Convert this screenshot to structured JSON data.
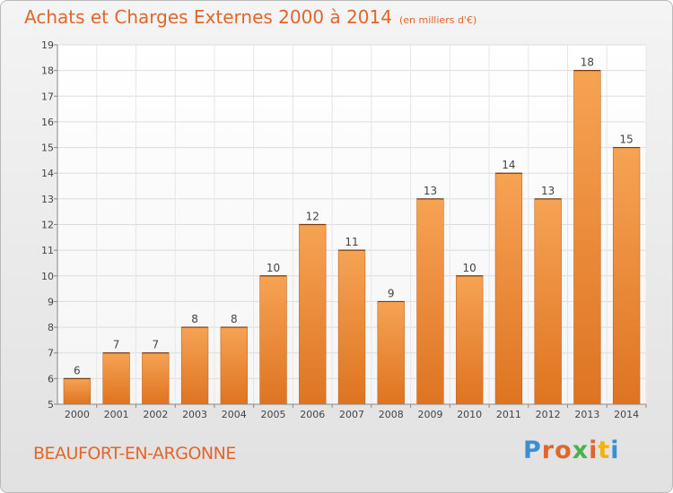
{
  "header": {
    "title": "Achats et Charges Externes 2000 à 2014",
    "unit": "(en milliers d'€)"
  },
  "footer": {
    "commune": "BEAUFORT-EN-ARGONNE",
    "logo_text": "Proxiti",
    "logo_colors": [
      "#3a8fd4",
      "#e2662a",
      "#e2662a",
      "#4caf50",
      "#e2662a",
      "#f2b400",
      "#3a8fd4"
    ]
  },
  "chart_data": {
    "type": "bar",
    "title": "Achats et Charges Externes 2000 à 2014",
    "categories": [
      "2000",
      "2001",
      "2002",
      "2003",
      "2004",
      "2005",
      "2006",
      "2007",
      "2008",
      "2009",
      "2010",
      "2011",
      "2012",
      "2013",
      "2014"
    ],
    "values": [
      6,
      7,
      7,
      8,
      8,
      10,
      12,
      11,
      9,
      13,
      10,
      14,
      13,
      18,
      15
    ],
    "ylim": [
      5,
      19
    ],
    "yticks": [
      5,
      6,
      7,
      8,
      9,
      10,
      11,
      12,
      13,
      14,
      15,
      16,
      17,
      18,
      19
    ],
    "grid": true,
    "bar_color_light": "#f6a354",
    "bar_color_dark": "#de7421",
    "text_color": "#e2662a"
  }
}
